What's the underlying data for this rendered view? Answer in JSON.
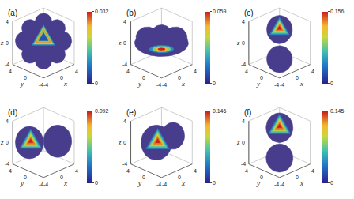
{
  "chart_data": [
    {
      "type": "isosurface",
      "title": "(a)",
      "xlabel": "x",
      "ylabel": "y",
      "zlabel": "z",
      "xlim": [
        -4,
        4
      ],
      "ylim": [
        -4,
        4
      ],
      "zlim": [
        -4,
        4
      ],
      "xticks": [
        -4,
        0,
        4
      ],
      "yticks": [
        -4,
        0,
        4
      ],
      "zticks": [
        -4,
        0,
        4
      ],
      "color": "#483c8c",
      "color_range": [
        0,
        0.032
      ],
      "color_ticks": [
        0,
        0.032
      ]
    },
    {
      "type": "isosurface",
      "title": "(b)",
      "xlabel": "x",
      "ylabel": "y",
      "zlabel": "z",
      "xlim": [
        -4,
        4
      ],
      "ylim": [
        -4,
        4
      ],
      "zlim": [
        -4,
        4
      ],
      "xticks": [
        -4,
        0,
        4
      ],
      "yticks": [
        -4,
        0,
        4
      ],
      "zticks": [
        -4,
        0,
        4
      ],
      "color": "#483c8c",
      "color_range": [
        0,
        0.059
      ],
      "color_ticks": [
        0,
        0.059
      ]
    },
    {
      "type": "isosurface",
      "title": "(c)",
      "xlabel": "x",
      "ylabel": "y",
      "zlabel": "z",
      "xlim": [
        -4,
        4
      ],
      "ylim": [
        -4,
        4
      ],
      "zlim": [
        -4,
        4
      ],
      "xticks": [
        -4,
        0,
        4
      ],
      "yticks": [
        -4,
        0,
        4
      ],
      "zticks": [
        -4,
        0,
        4
      ],
      "color": "#483c8c",
      "color_range": [
        0,
        0.156
      ],
      "color_ticks": [
        0,
        0.156
      ]
    },
    {
      "type": "isosurface",
      "title": "(d)",
      "xlabel": "x",
      "ylabel": "y",
      "zlabel": "z",
      "xlim": [
        -4,
        4
      ],
      "ylim": [
        -4,
        4
      ],
      "zlim": [
        -4,
        4
      ],
      "xticks": [
        -4,
        0,
        4
      ],
      "yticks": [
        -4,
        0,
        4
      ],
      "zticks": [
        -4,
        0,
        4
      ],
      "color": "#483c8c",
      "color_range": [
        0,
        0.092
      ],
      "color_ticks": [
        0,
        0.092
      ]
    },
    {
      "type": "isosurface",
      "title": "(e)",
      "xlabel": "x",
      "ylabel": "y",
      "zlabel": "z",
      "xlim": [
        -4,
        4
      ],
      "ylim": [
        -4,
        4
      ],
      "zlim": [
        -4,
        4
      ],
      "xticks": [
        -4,
        0,
        4
      ],
      "yticks": [
        -4,
        0,
        4
      ],
      "zticks": [
        -4,
        0,
        4
      ],
      "color": "#483c8c",
      "color_range": [
        0,
        0.146
      ],
      "color_ticks": [
        0,
        0.146
      ]
    },
    {
      "type": "isosurface",
      "title": "(f)",
      "xlabel": "x",
      "ylabel": "y",
      "zlabel": "z",
      "xlim": [
        -4,
        4
      ],
      "ylim": [
        -4,
        4
      ],
      "zlim": [
        -4,
        4
      ],
      "xticks": [
        -4,
        0,
        4
      ],
      "yticks": [
        -4,
        0,
        4
      ],
      "zticks": [
        -4,
        0,
        4
      ],
      "color": "#483c8c",
      "color_range": [
        0,
        0.145
      ],
      "color_ticks": [
        0,
        0.145
      ]
    }
  ]
}
